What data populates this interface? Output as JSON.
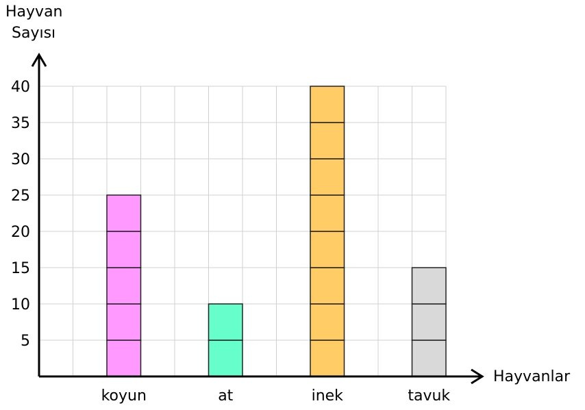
{
  "chart_data": {
    "type": "bar",
    "ylabel_line1": "Hayvan",
    "ylabel_line2": "Sayısı",
    "xlabel": "Hayvanlar",
    "categories": [
      "koyun",
      "at",
      "inek",
      "tavuk"
    ],
    "values": [
      25,
      10,
      40,
      15
    ],
    "colors": [
      "#ff99ff",
      "#66ffcc",
      "#ffcc66",
      "#d9d9d9"
    ],
    "yticks": [
      5,
      10,
      15,
      20,
      25,
      30,
      35,
      40
    ],
    "ylim": [
      0,
      40
    ],
    "unit_step": 5,
    "grid": true
  }
}
